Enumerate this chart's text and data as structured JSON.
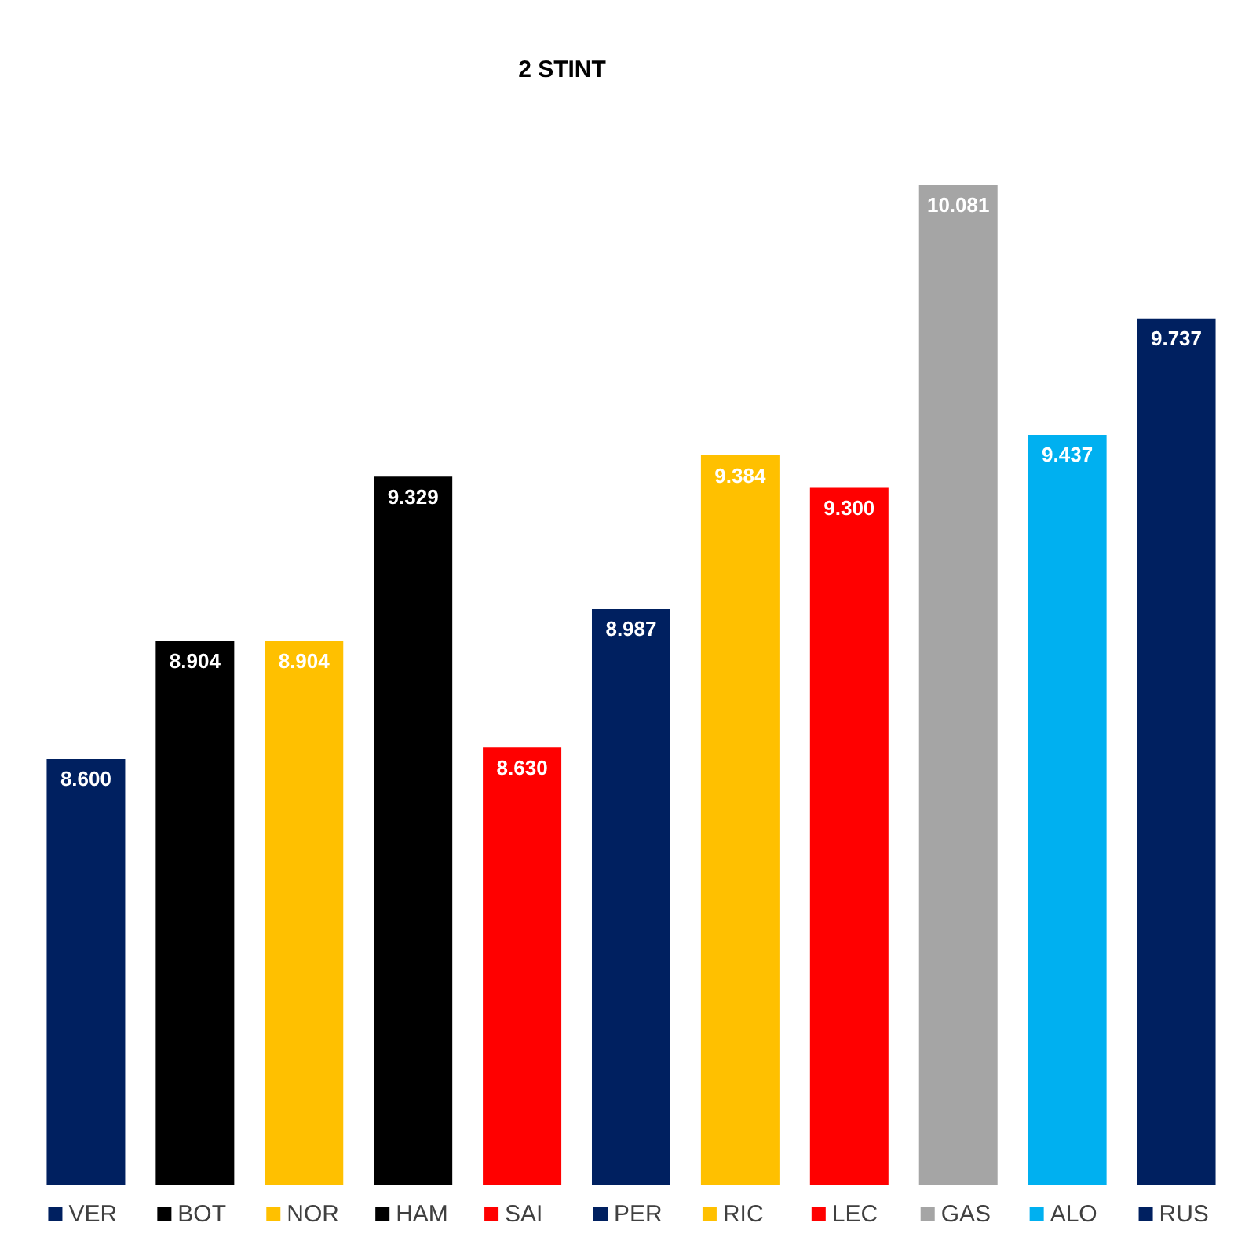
{
  "chart_data": {
    "type": "bar",
    "title": "2 STINT",
    "categories": [
      "VER",
      "BOT",
      "NOR",
      "HAM",
      "SAI",
      "PER",
      "RIC",
      "LEC",
      "GAS",
      "ALO",
      "RUS"
    ],
    "values": [
      8.6,
      8.904,
      8.904,
      9.329,
      8.63,
      8.987,
      9.384,
      9.3,
      10.081,
      9.437,
      9.737
    ],
    "value_labels": [
      "8.600",
      "8.904",
      "8.904",
      "9.329",
      "8.630",
      "8.987",
      "9.384",
      "9.300",
      "10.081",
      "9.437",
      "9.737"
    ],
    "colors": [
      "#002060",
      "#000000",
      "#ffc000",
      "#000000",
      "#ff0000",
      "#002060",
      "#ffc000",
      "#ff0000",
      "#a5a5a5",
      "#00b0f0",
      "#002060"
    ],
    "ylim": [
      7.5,
      10.081
    ],
    "tick_labels": "x",
    "grid": false
  }
}
